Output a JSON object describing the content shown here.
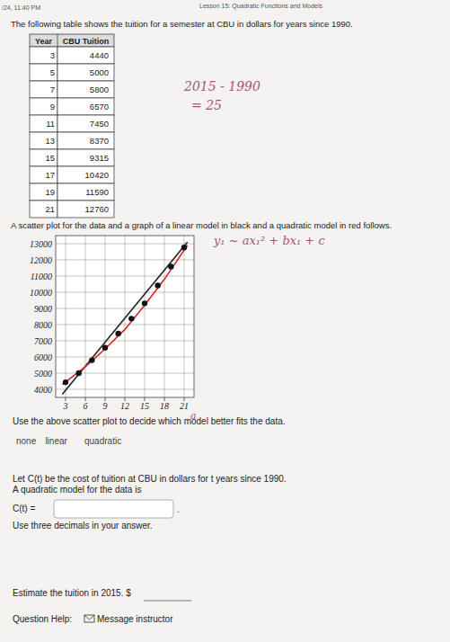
{
  "header": {
    "timestamp": "/24, 11:40 PM",
    "lesson": "Lesson 15: Quadratic Functions and Models"
  },
  "intro": "The following table shows the tuition for a semester at CBU in dollars for years since 1990.",
  "table": {
    "columns": [
      "Year",
      "CBU Tuition"
    ],
    "rows": [
      [
        3,
        4440
      ],
      [
        5,
        5000
      ],
      [
        7,
        5800
      ],
      [
        9,
        6570
      ],
      [
        11,
        7450
      ],
      [
        13,
        8370
      ],
      [
        15,
        9315
      ],
      [
        17,
        10420
      ],
      [
        19,
        11590
      ],
      [
        21,
        12760
      ]
    ]
  },
  "notes": [
    "2015 - 1990",
    "= 25",
    "y₁ ~ ax₁² + bx₁ + c",
    "a"
  ],
  "plot_intro": "A scatter plot for the data and a graph of a linear model in black and a quadratic model in red follows.",
  "chart_data": {
    "type": "scatter",
    "xlim": [
      1.5,
      22.5
    ],
    "ylim": [
      3500,
      13500
    ],
    "xticks": [
      3,
      6,
      9,
      12,
      15,
      18,
      21
    ],
    "yticks": [
      4000,
      5000,
      6000,
      7000,
      8000,
      9000,
      10000,
      11000,
      12000,
      13000
    ],
    "grid": true,
    "series": [
      {
        "type": "scatter",
        "color": "#111111",
        "marker": "circle",
        "x": [
          3,
          5,
          7,
          9,
          11,
          13,
          15,
          17,
          19,
          21
        ],
        "values": [
          4440,
          5000,
          5800,
          6570,
          7450,
          8370,
          9315,
          10420,
          11590,
          12760
        ]
      },
      {
        "type": "line",
        "color": "#222222",
        "line_style": "solid",
        "x": [
          2.5,
          21.5
        ],
        "values": [
          3700,
          13100
        ]
      },
      {
        "type": "line",
        "color": "#d62728",
        "line_style": "solid",
        "x": [
          2.5,
          6,
          9,
          12,
          15,
          18,
          21.5
        ],
        "values": [
          4300,
          5400,
          6500,
          7700,
          9200,
          10800,
          12900
        ]
      }
    ]
  },
  "question1": {
    "text": "Use the above scatter plot to decide which model better fits the data.",
    "options": [
      "none",
      "linear",
      "quadratic"
    ]
  },
  "question2": {
    "lines": [
      "Let C(t) be the cost of tuition at CBU in dollars for t years since 1990.",
      "A quadratic  model for the data is"
    ],
    "label": "C(t) =",
    "after": ".",
    "hint": "Use three decimals in your answer."
  },
  "question3": {
    "text": "Estimate the tuition in 2015. $"
  },
  "help": {
    "label": "Question Help:",
    "link": "Message instructor"
  }
}
